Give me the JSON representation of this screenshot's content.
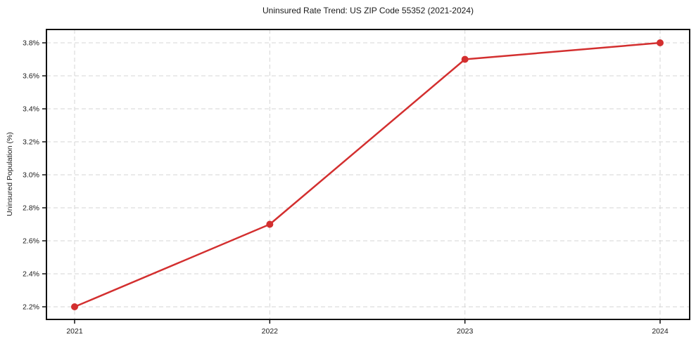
{
  "chart_data": {
    "type": "line",
    "title": "Uninsured Rate Trend: US ZIP Code 55352 (2021-2024)",
    "xlabel": "",
    "ylabel": "Uninsured Population (%)",
    "x": [
      "2021",
      "2022",
      "2023",
      "2024"
    ],
    "series": [
      {
        "name": "Uninsured Rate",
        "values": [
          2.2,
          2.7,
          3.7,
          3.8
        ]
      }
    ],
    "value_unit": "%",
    "yticks": [
      2.2,
      2.4,
      2.6,
      2.8,
      3.0,
      3.2,
      3.4,
      3.6,
      3.8
    ],
    "ytick_labels": [
      "2.2%",
      "2.4%",
      "2.6%",
      "2.8%",
      "3.0%",
      "3.2%",
      "3.4%",
      "3.6%",
      "3.8%"
    ],
    "ylim": [
      2.12,
      3.88
    ],
    "grid": "dashed, both axes",
    "legend_position": "none",
    "colors": {
      "line": "#d32f2f",
      "marker": "#d32f2f",
      "grid": "#d6d6d6",
      "spine": "#111111",
      "text": "#1a1a1a",
      "background": "#ffffff"
    },
    "marker_style": "circle"
  }
}
